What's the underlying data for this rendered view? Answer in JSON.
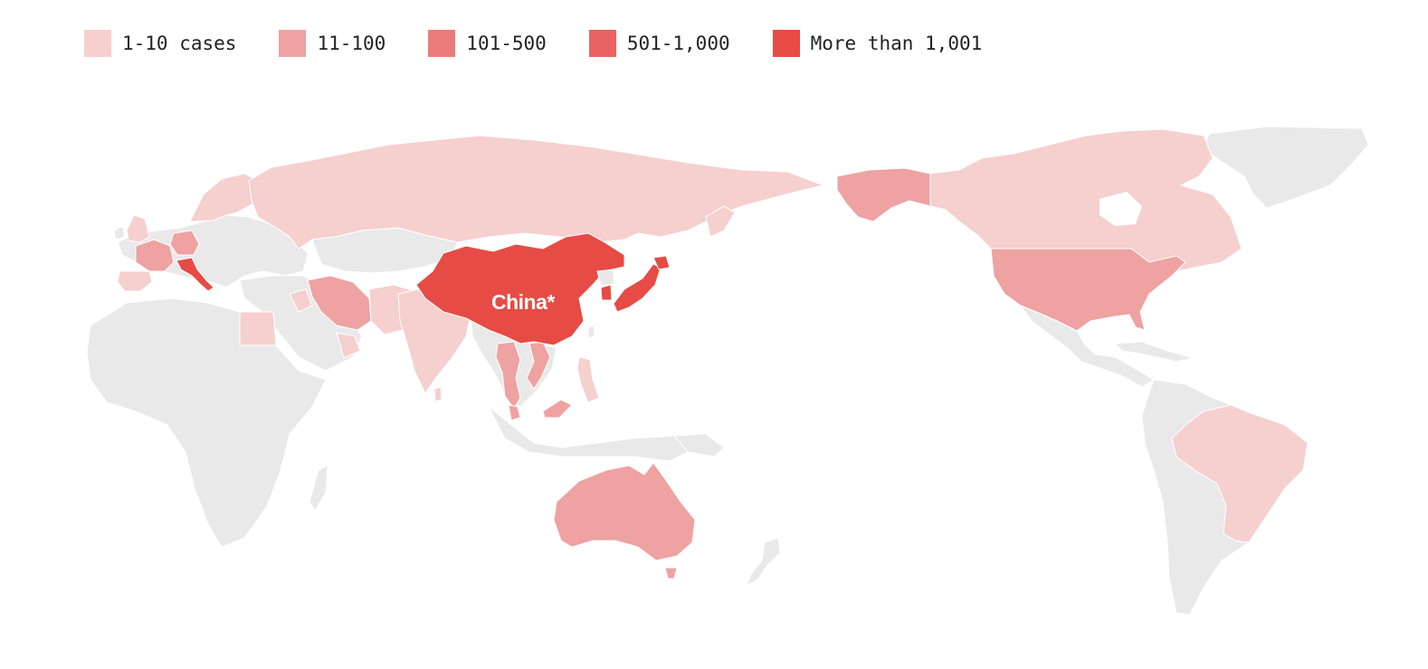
{
  "legend": {
    "items": [
      {
        "label": "1-10 cases",
        "color": "#f6cfcf"
      },
      {
        "label": "11-100",
        "color": "#eea2a2"
      },
      {
        "label": "101-500",
        "color": "#ec7b7b"
      },
      {
        "label": "501-1,000",
        "color": "#e86363"
      },
      {
        "label": "More than 1,001",
        "color": "#e64b45"
      }
    ]
  },
  "map": {
    "no_data_color": "#e9e9e9",
    "label": "China*",
    "regions": [
      {
        "name": "China",
        "bucket": "More than 1,001"
      },
      {
        "name": "South Korea",
        "bucket": "More than 1,001"
      },
      {
        "name": "Japan",
        "bucket": "More than 1,001"
      },
      {
        "name": "Italy",
        "bucket": "More than 1,001"
      },
      {
        "name": "France",
        "bucket": "11-100"
      },
      {
        "name": "Germany",
        "bucket": "11-100"
      },
      {
        "name": "Iran",
        "bucket": "11-100"
      },
      {
        "name": "United States",
        "bucket": "11-100"
      },
      {
        "name": "Alaska",
        "bucket": "11-100"
      },
      {
        "name": "Australia",
        "bucket": "11-100"
      },
      {
        "name": "Thailand",
        "bucket": "11-100"
      },
      {
        "name": "Singapore",
        "bucket": "11-100"
      },
      {
        "name": "Malaysia",
        "bucket": "11-100"
      },
      {
        "name": "Vietnam",
        "bucket": "11-100"
      },
      {
        "name": "Russia",
        "bucket": "1-10 cases"
      },
      {
        "name": "Canada",
        "bucket": "1-10 cases"
      },
      {
        "name": "Brazil",
        "bucket": "1-10 cases"
      },
      {
        "name": "India",
        "bucket": "1-10 cases"
      },
      {
        "name": "Egypt",
        "bucket": "1-10 cases"
      },
      {
        "name": "Scandinavia",
        "bucket": "1-10 cases"
      },
      {
        "name": "United Kingdom",
        "bucket": "1-10 cases"
      },
      {
        "name": "Spain",
        "bucket": "1-10 cases"
      },
      {
        "name": "Afghanistan",
        "bucket": "1-10 cases"
      },
      {
        "name": "Philippines",
        "bucket": "1-10 cases"
      },
      {
        "name": "Arabian Gulf",
        "bucket": "1-10 cases"
      }
    ]
  }
}
